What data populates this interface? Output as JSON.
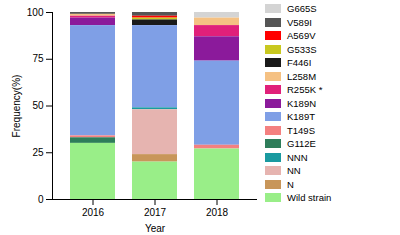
{
  "chart_data": {
    "type": "bar",
    "stacked": true,
    "legend": "right",
    "x_label": "Year",
    "y_label": "Frequency(%)",
    "categories": [
      "2016",
      "2017",
      "2018"
    ],
    "ylim": [
      0,
      100
    ],
    "yticks": [
      0,
      25,
      50,
      75,
      100
    ],
    "series": [
      {
        "name": "G665S",
        "color": "#d4d4d4",
        "values": [
          0,
          0,
          3
        ]
      },
      {
        "name": "V589I",
        "color": "#555555",
        "values": [
          1,
          2,
          0
        ]
      },
      {
        "name": "A569V",
        "color": "#ff0000",
        "values": [
          0,
          1,
          0
        ]
      },
      {
        "name": "G533S",
        "color": "#c8c820",
        "values": [
          0,
          1,
          0
        ]
      },
      {
        "name": "F446I",
        "color": "#1a1a1a",
        "values": [
          0,
          3,
          0
        ]
      },
      {
        "name": "L258M",
        "color": "#f5c183",
        "values": [
          1,
          0,
          4
        ]
      },
      {
        "name": "R255K *",
        "color": "#e0207a",
        "values": [
          1,
          0,
          6
        ]
      },
      {
        "name": "K189N",
        "color": "#8b1a9b",
        "values": [
          4,
          0,
          13
        ]
      },
      {
        "name": "K189T",
        "color": "#7f9fe6",
        "values": [
          59,
          44,
          45
        ]
      },
      {
        "name": "T149S",
        "color": "#f48080",
        "values": [
          1,
          0,
          2
        ]
      },
      {
        "name": "G112E",
        "color": "#2e7d5a",
        "values": [
          3,
          0,
          0
        ]
      },
      {
        "name": "NNN",
        "color": "#1a9aa0",
        "values": [
          0,
          1,
          0
        ]
      },
      {
        "name": "NN",
        "color": "#e6b4b0",
        "values": [
          0,
          24,
          0
        ]
      },
      {
        "name": "N",
        "color": "#c8965a",
        "values": [
          0,
          4,
          0
        ]
      },
      {
        "name": "Wild strain",
        "color": "#99ee88",
        "values": [
          30,
          20,
          27
        ]
      }
    ]
  }
}
